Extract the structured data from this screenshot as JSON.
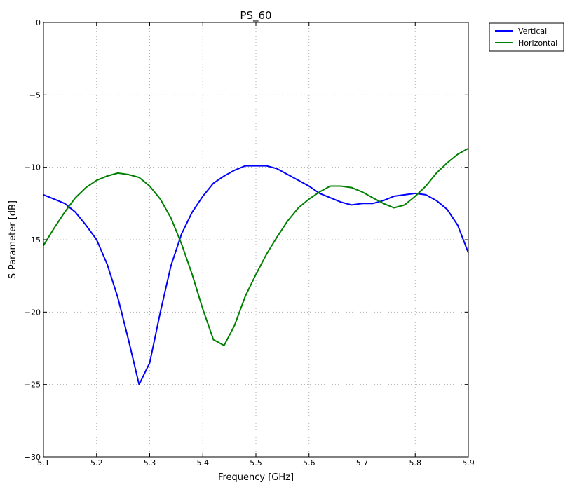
{
  "chart_data": {
    "type": "line",
    "title": "PS_60",
    "xlabel": "Frequency [GHz]",
    "ylabel": "S-Parameter [dB]",
    "xlim": [
      5.1,
      5.9
    ],
    "ylim": [
      -30,
      0
    ],
    "xticks": [
      "5.1",
      "5.2",
      "5.3",
      "5.4",
      "5.5",
      "5.6",
      "5.7",
      "5.8",
      "5.9"
    ],
    "yticks": [
      "0",
      "−5",
      "−10",
      "−15",
      "−20",
      "−25",
      "−30"
    ],
    "grid": true,
    "legend_position": "outside-top-right",
    "series": [
      {
        "name": "Vertical",
        "color": "#0000ff",
        "x": [
          5.1,
          5.12,
          5.14,
          5.16,
          5.18,
          5.2,
          5.22,
          5.24,
          5.26,
          5.28,
          5.3,
          5.32,
          5.34,
          5.36,
          5.38,
          5.4,
          5.42,
          5.44,
          5.46,
          5.48,
          5.5,
          5.52,
          5.54,
          5.56,
          5.58,
          5.6,
          5.62,
          5.64,
          5.66,
          5.68,
          5.7,
          5.72,
          5.74,
          5.76,
          5.78,
          5.8,
          5.82,
          5.84,
          5.86,
          5.88,
          5.9
        ],
        "y": [
          -11.9,
          -12.2,
          -12.5,
          -13.1,
          -14.0,
          -15.0,
          -16.7,
          -19.0,
          -21.9,
          -25.0,
          -23.5,
          -20.0,
          -16.8,
          -14.6,
          -13.1,
          -12.0,
          -11.1,
          -10.6,
          -10.2,
          -9.9,
          -9.9,
          -9.9,
          -10.1,
          -10.5,
          -10.9,
          -11.3,
          -11.8,
          -12.1,
          -12.4,
          -12.6,
          -12.5,
          -12.5,
          -12.3,
          -12.0,
          -11.9,
          -11.8,
          -11.9,
          -12.3,
          -12.9,
          -14.0,
          -15.9
        ]
      },
      {
        "name": "Horizontal",
        "color": "#008000",
        "x": [
          5.1,
          5.12,
          5.14,
          5.16,
          5.18,
          5.2,
          5.22,
          5.24,
          5.26,
          5.28,
          5.3,
          5.32,
          5.34,
          5.36,
          5.38,
          5.4,
          5.42,
          5.44,
          5.46,
          5.48,
          5.5,
          5.52,
          5.54,
          5.56,
          5.58,
          5.6,
          5.62,
          5.64,
          5.66,
          5.68,
          5.7,
          5.72,
          5.74,
          5.76,
          5.78,
          5.8,
          5.82,
          5.84,
          5.86,
          5.88,
          5.9
        ],
        "y": [
          -15.4,
          -14.2,
          -13.1,
          -12.1,
          -11.4,
          -10.9,
          -10.6,
          -10.4,
          -10.5,
          -10.7,
          -11.3,
          -12.2,
          -13.5,
          -15.3,
          -17.4,
          -19.8,
          -21.9,
          -22.3,
          -20.9,
          -18.9,
          -17.4,
          -16.0,
          -14.8,
          -13.7,
          -12.8,
          -12.2,
          -11.7,
          -11.3,
          -11.3,
          -11.4,
          -11.7,
          -12.1,
          -12.5,
          -12.8,
          -12.6,
          -12.0,
          -11.3,
          -10.4,
          -9.7,
          -9.1,
          -8.7
        ]
      }
    ]
  }
}
